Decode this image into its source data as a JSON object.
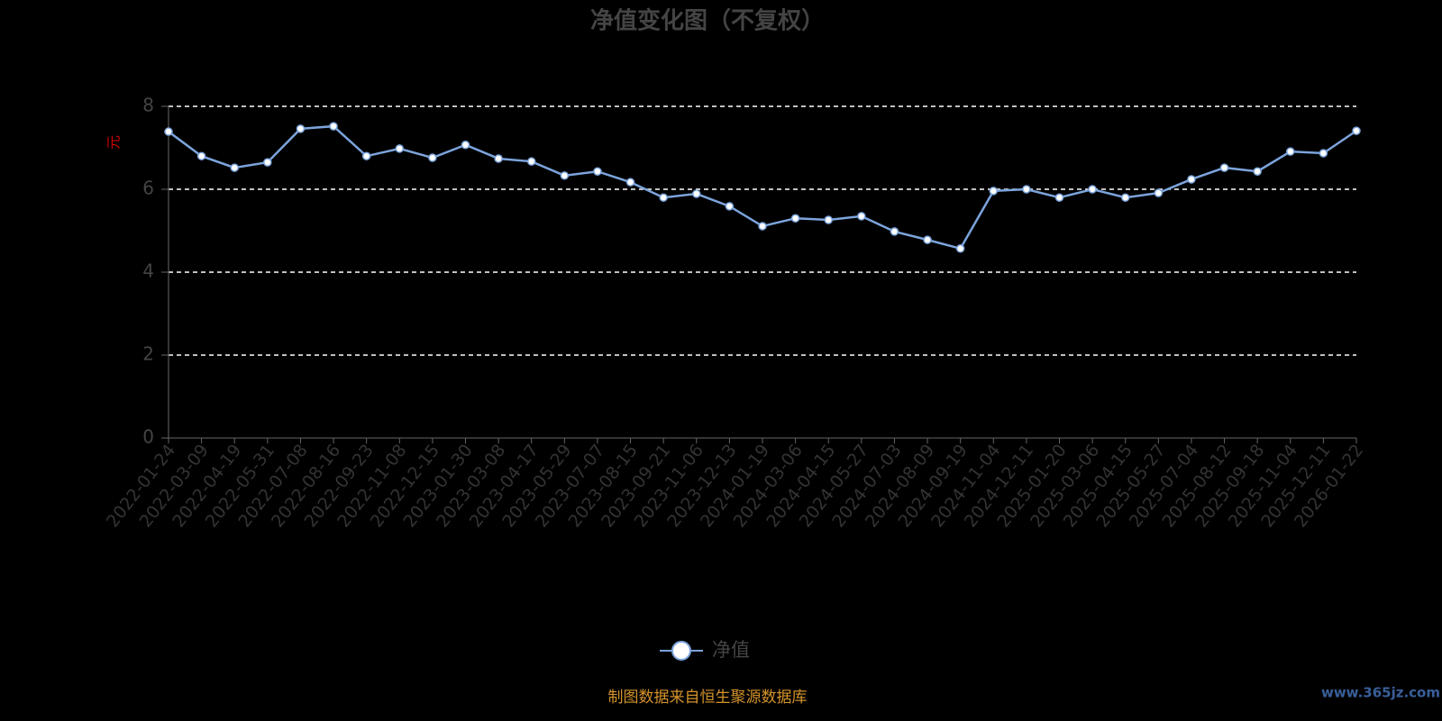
{
  "chart_data": {
    "type": "line",
    "title": "净值变化图（不复权）",
    "y_label": "元",
    "categories": [
      "2022-01-24",
      "2022-03-09",
      "2022-04-19",
      "2022-05-31",
      "2022-07-08",
      "2022-08-16",
      "2022-09-23",
      "2022-11-08",
      "2022-12-15",
      "2023-01-30",
      "2023-03-08",
      "2023-04-17",
      "2023-05-29",
      "2023-07-07",
      "2023-08-15",
      "2023-09-21",
      "2023-11-06",
      "2023-12-13",
      "2024-01-19",
      "2024-03-06",
      "2024-04-15",
      "2024-05-27",
      "2024-07-03",
      "2024-08-09",
      "2024-09-19",
      "2024-11-04",
      "2024-12-11",
      "2025-01-20",
      "2025-03-06",
      "2025-04-15",
      "2025-05-27",
      "2025-07-04",
      "2025-08-12",
      "2025-09-18",
      "2025-11-04",
      "2025-12-11",
      "2026-01-22"
    ],
    "series": [
      {
        "name": "净值",
        "color": "#7ca4dc",
        "values": [
          7.39,
          6.8,
          6.52,
          6.65,
          7.46,
          7.52,
          6.8,
          6.98,
          6.76,
          7.07,
          6.74,
          6.67,
          6.33,
          6.43,
          6.17,
          5.8,
          5.89,
          5.59,
          5.11,
          5.3,
          5.26,
          5.35,
          4.98,
          4.78,
          4.57,
          5.96,
          6.0,
          5.8,
          6.0,
          5.8,
          5.91,
          6.24,
          6.52,
          6.43,
          6.91,
          6.87,
          7.41
        ]
      }
    ],
    "ylim": [
      0,
      8
    ],
    "yticks": [
      0,
      2,
      4,
      6,
      8
    ],
    "grid": true,
    "source": "制图数据来自恒生聚源数据库",
    "watermark": "www.365jz.com"
  }
}
